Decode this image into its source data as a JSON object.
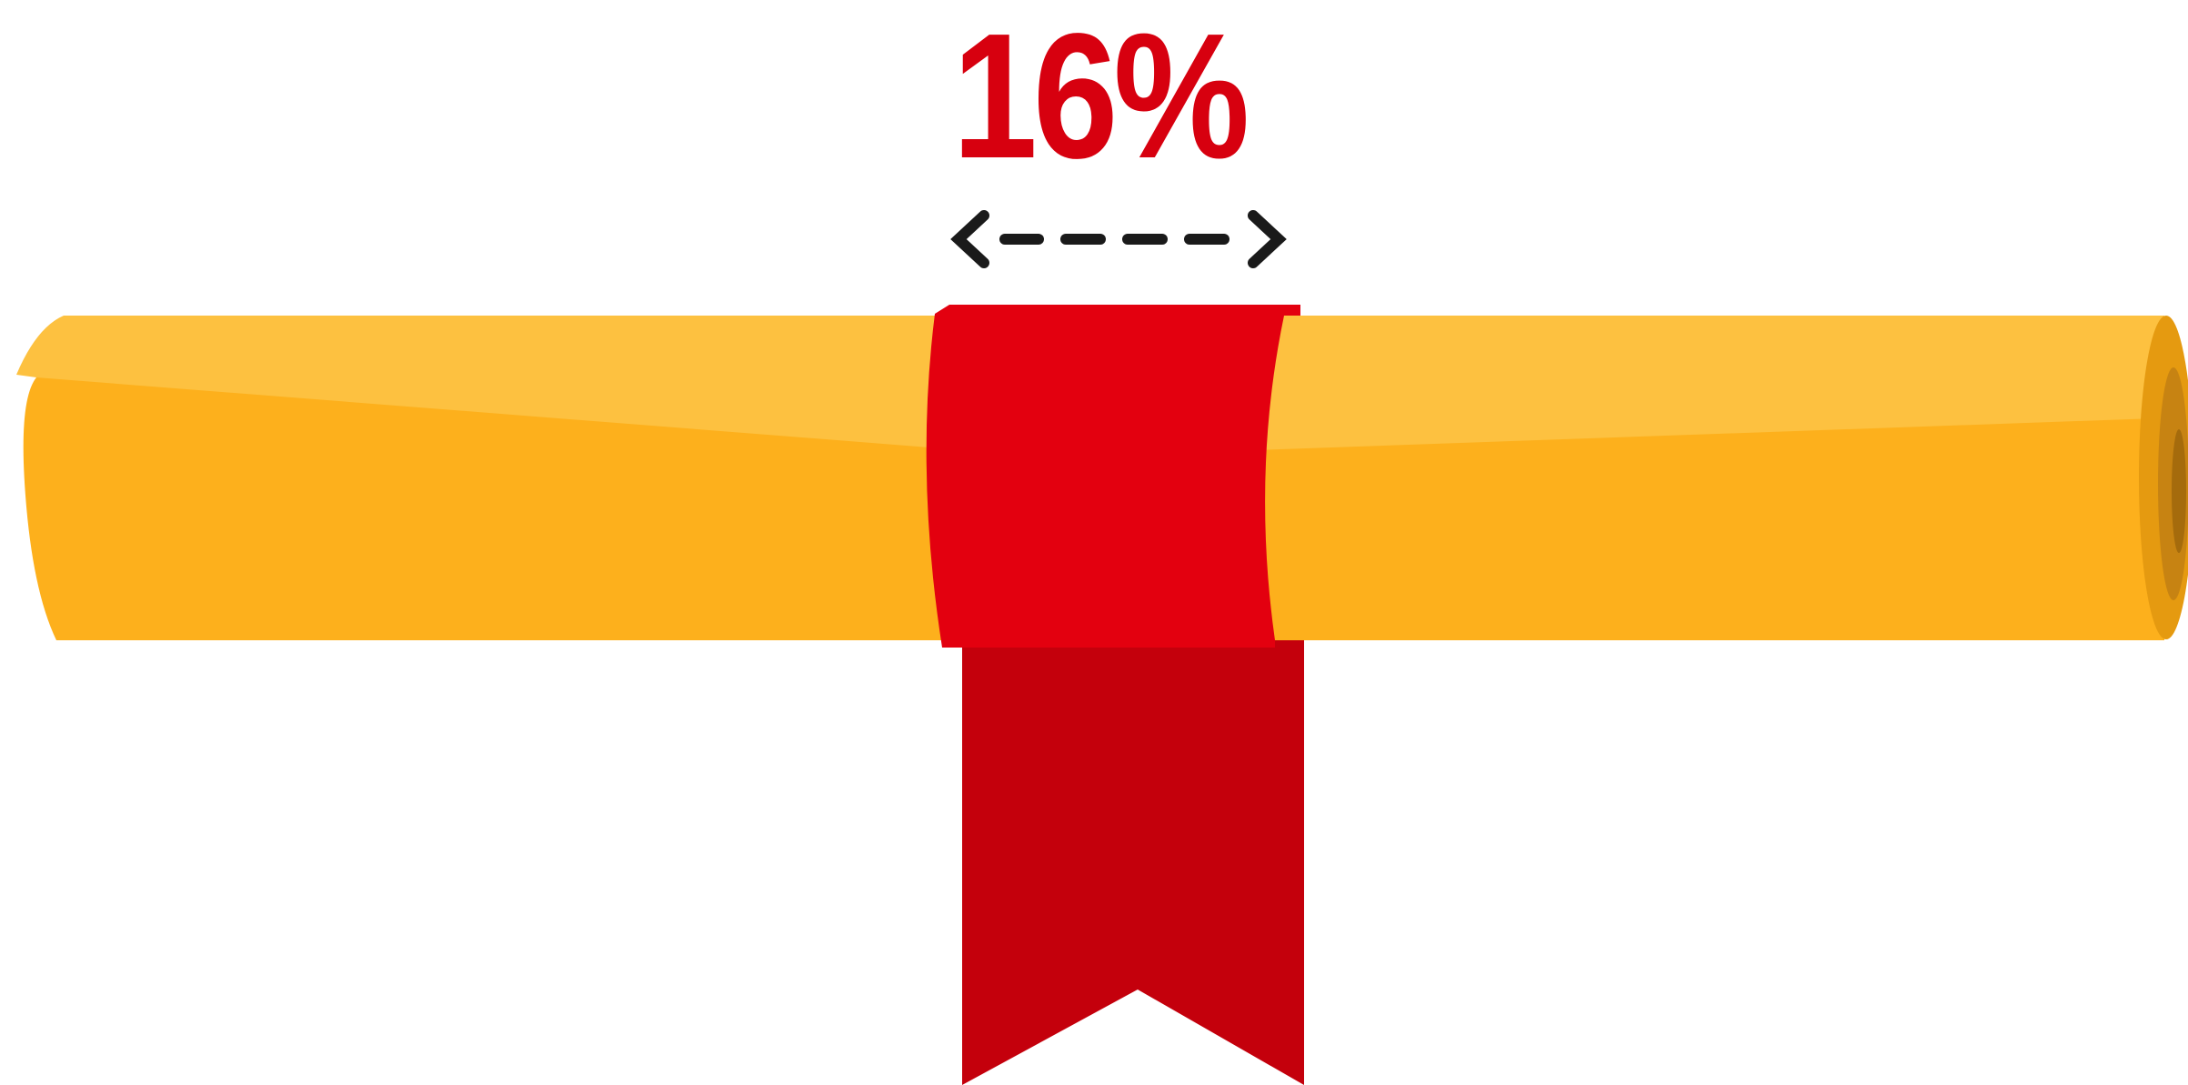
{
  "infographic": {
    "percent_label": "16%",
    "share_value": 16,
    "share_unit": "percent"
  },
  "icons": {
    "arrow": "double-headed-dashed-arrow-icon",
    "scroll": "rolled-diploma-scroll-icon",
    "ribbon": "ribbon-band-icon"
  },
  "colors": {
    "accent_red": "#e3000f",
    "ribbon_tail_red": "#c4000c",
    "scroll_orange": "#fdb01c",
    "scroll_highlight": "#fdc140",
    "arrow_black": "#1a1a1a"
  }
}
